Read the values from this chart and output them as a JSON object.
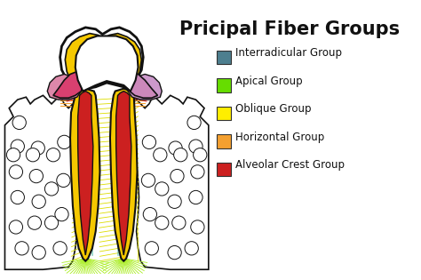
{
  "title": "Pricipal Fiber Groups",
  "title_fontsize": 15,
  "background_color": "#ffffff",
  "legend_items": [
    {
      "label": "Interradicular Group",
      "color": "#4d7f8f"
    },
    {
      "label": "Apical Group",
      "color": "#66dd00"
    },
    {
      "label": "Oblique Group",
      "color": "#ffee00"
    },
    {
      "label": "Horizontal Group",
      "color": "#f4a030"
    },
    {
      "label": "Alveolar Crest Group",
      "color": "#cc2020"
    }
  ],
  "dentin_color": "#f5c800",
  "pulp_color": "#cc2020",
  "gum_left_color": "#d94070",
  "gum_right_color": "#cc88bb",
  "bone_color": "#ffffff",
  "fiber_yellow_color": "#dddd00",
  "fiber_orange_color": "#f4a030",
  "fiber_red_color": "#dd3333",
  "fiber_green_color": "#aaee22",
  "fiber_teal_color": "#55bbaa"
}
